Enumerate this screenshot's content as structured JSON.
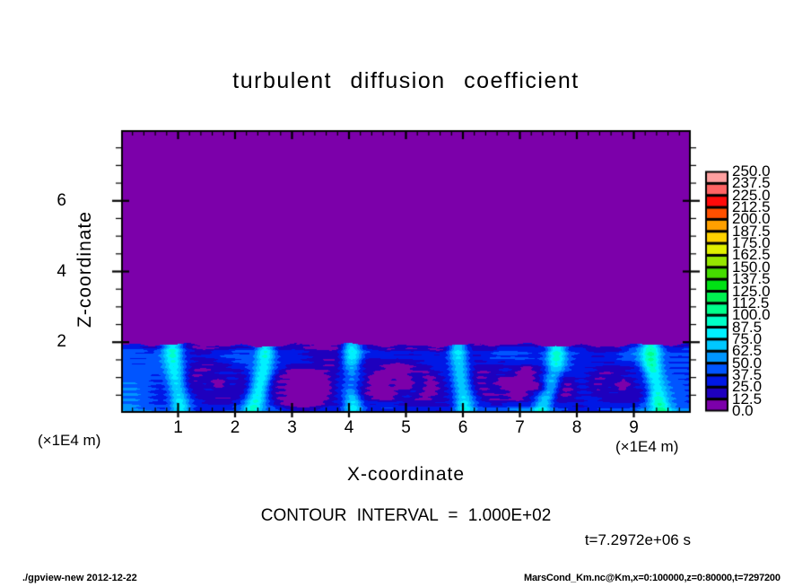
{
  "chart_data": {
    "type": "heatmap",
    "title": "turbulent diffusion coefficient",
    "xlabel": "X-coordinate",
    "ylabel": "Z-coordinate",
    "x_unit": "(×1E4 m)",
    "z_unit": "(×1E4 m)",
    "x_range_1e4m": [
      0,
      10
    ],
    "z_range_1e4m": [
      0,
      8
    ],
    "x_ticks": [
      1,
      2,
      3,
      4,
      5,
      6,
      7,
      8,
      9
    ],
    "x_minor_step": 0.2,
    "z_ticks": [
      2,
      4,
      6
    ],
    "z_minor_step": 0.5,
    "contour_interval": 100,
    "time_seconds": 7297200,
    "levels": [
      0,
      12.5,
      25,
      37.5,
      50,
      62.5,
      75,
      87.5,
      100,
      112.5,
      125,
      137.5,
      150,
      162.5,
      175,
      187.5,
      200,
      212.5,
      225,
      237.5,
      250
    ],
    "colorbar_labels": [
      "250.0",
      "237.5",
      "225.0",
      "212.5",
      "200.0",
      "187.5",
      "175.0",
      "162.5",
      "150.0",
      "137.5",
      "125.0",
      "112.5",
      "100.0",
      "87.5",
      "75.0",
      "62.5",
      "50.0",
      "37.5",
      "25.0",
      "12.5",
      "0.0"
    ],
    "palette_low_to_high": [
      "#7C00AA",
      "#1E00BE",
      "#0018E6",
      "#0055FF",
      "#0096FF",
      "#00C8FF",
      "#00F0FF",
      "#00FFC8",
      "#00FF8C",
      "#00F050",
      "#00E114",
      "#46DC00",
      "#96E600",
      "#E1F000",
      "#FFD200",
      "#FFA000",
      "#FF5000",
      "#FF0A0A",
      "#FF6464",
      "#FFA0A0"
    ],
    "field": {
      "description": "Value 0 (purple) everywhere above mixed-layer top near z=1.9e4 m; turbulent convective layer below with values mostly 12.5-100 (blues/cyans), cyan updraft plumes and dark vortex cores with small near-zero purple patches",
      "background_value": 0,
      "mixed_layer_top": 1.9,
      "plumes_x": [
        0.95,
        2.45,
        4.05,
        5.95,
        7.55,
        9.35
      ],
      "plume_curvature": [
        0.3,
        -0.5,
        0.05,
        0.25,
        -0.6,
        0.4
      ],
      "vortex_cores": [
        [
          1.7,
          0.45,
          22
        ],
        [
          3.1,
          0.35,
          34
        ],
        [
          4.5,
          0.5,
          30
        ],
        [
          5.0,
          0.42,
          20
        ],
        [
          6.7,
          0.45,
          26
        ],
        [
          7.35,
          0.38,
          34
        ],
        [
          8.8,
          0.42,
          32
        ]
      ]
    }
  },
  "labels": {
    "title": "turbulent diffusion coefficient",
    "x_axis": "X-coordinate",
    "z_axis": "Z-coordinate",
    "unit_left": "(×1E4 m)",
    "unit_right": "(×1E4 m)",
    "contour_note": "CONTOUR INTERVAL = 1.000E+02",
    "time_note": "t=7.2972e+06 s"
  },
  "footer": {
    "left": "./gpview-new  2012-12-22",
    "right": "MarsCond_Km.nc@Km,x=0:100000,z=0:80000,t=7297200"
  }
}
